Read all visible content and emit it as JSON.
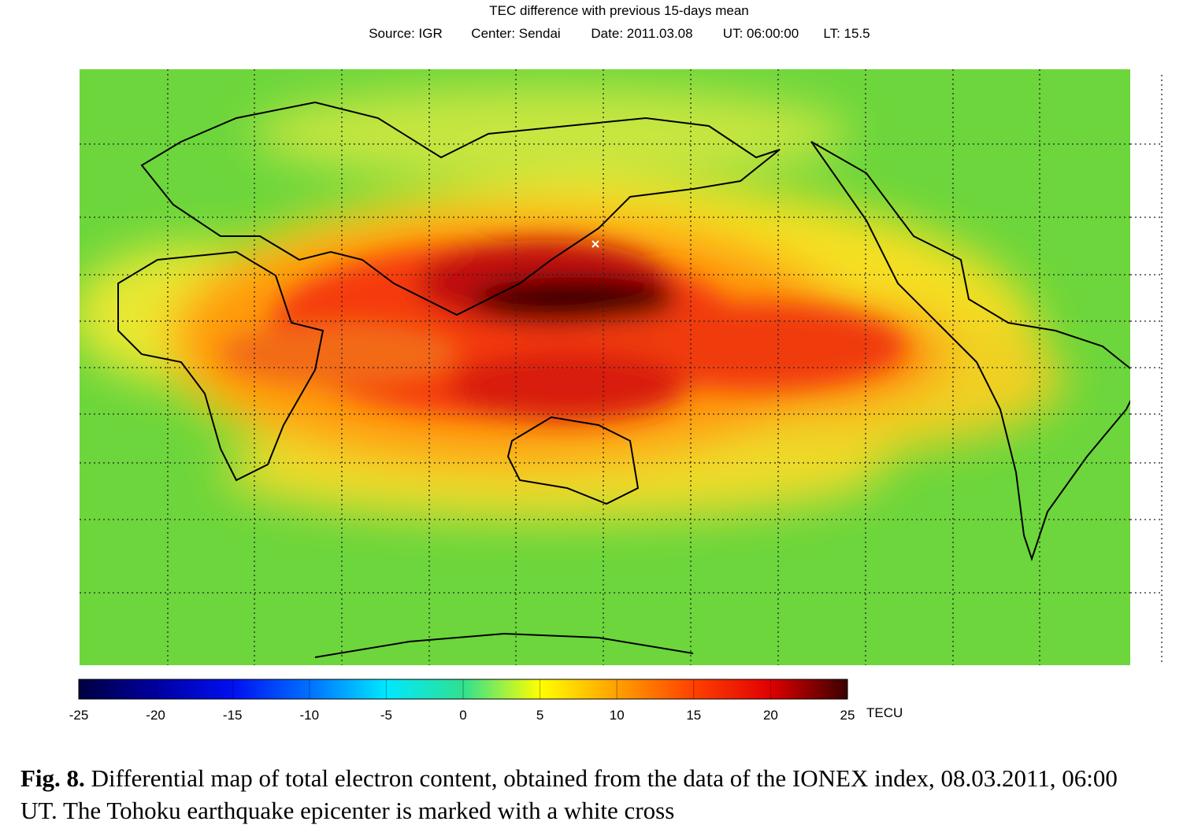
{
  "header": {
    "title": "TEC difference with previous 15-days mean",
    "info": [
      "Source: IGR",
      "Center: Sendai",
      "Date: 2011.03.08",
      "UT: 06:00:00",
      "LT: 15.5"
    ]
  },
  "colorbar": {
    "lim": [
      -25,
      25
    ],
    "ticks": [
      -25,
      -20,
      -15,
      -10,
      -5,
      0,
      5,
      10,
      15,
      20,
      25
    ],
    "colors": [
      "#000040",
      "#0000a0",
      "#0010f0",
      "#0070ff",
      "#00e8ff",
      "#30e090",
      "#ffff00",
      "#ffa000",
      "#ff4000",
      "#e00000",
      "#3a0000"
    ],
    "unit": "TECU"
  },
  "caption": {
    "label": "Fig. 8.",
    "text": "Differential map of total electron content, obtained from the data of the IONEX index, 08.03.2011, 06:00 UT. The Tohoku earthquake epicenter is marked with a white cross"
  }
}
